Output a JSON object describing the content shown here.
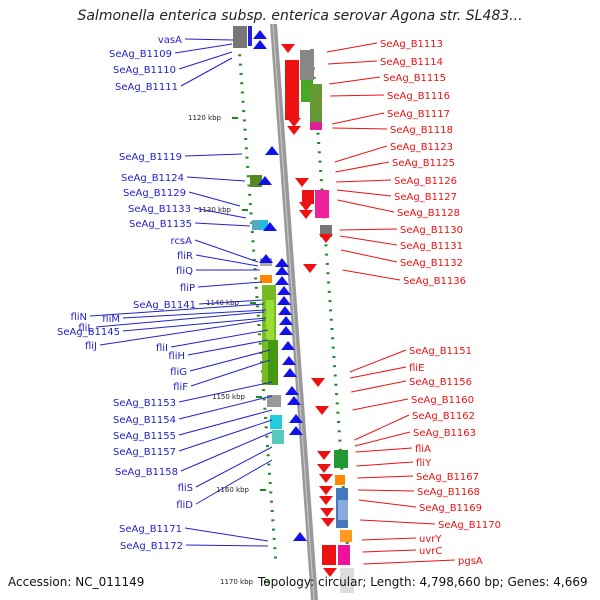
{
  "title": "Salmonella enterica subsp. enterica serovar Agona str. SL483...",
  "footer": {
    "accession": "Accession: NC_011149",
    "info": "Topology: circular; Length: 4,798,660 bp; Genes: 4,669"
  },
  "kbp_labels": [
    "1120 kbp",
    "1130 kbp",
    "1140 kbp",
    "1150 kbp",
    "1160 kbp",
    "1170 kbp"
  ],
  "left_labels": [
    "vasA",
    "SeAg_B1109",
    "SeAg_B1110",
    "SeAg_B1111",
    "SeAg_B1119",
    "SeAg_B1124",
    "SeAg_B1129",
    "SeAg_B1133",
    "SeAg_B1135",
    "rcsA",
    "fliR",
    "fliQ",
    "fliP",
    "SeAg_B1141",
    "fliN",
    "fliM",
    "fliL",
    "SeAg_B1145",
    "fliJ",
    "fliI",
    "fliH",
    "fliG",
    "fliF",
    "SeAg_B1153",
    "SeAg_B1154",
    "SeAg_B1155",
    "SeAg_B1157",
    "SeAg_B1158",
    "fliS",
    "fliD",
    "SeAg_B1171",
    "SeAg_B1172"
  ],
  "right_labels": [
    "SeAg_B1113",
    "SeAg_B1114",
    "SeAg_B1115",
    "SeAg_B1116",
    "SeAg_B1117",
    "SeAg_B1118",
    "SeAg_B1123",
    "SeAg_B1125",
    "SeAg_B1126",
    "SeAg_B1127",
    "SeAg_B1128",
    "SeAg_B1130",
    "SeAg_B1131",
    "SeAg_B1132",
    "SeAg_B1136",
    "SeAg_B1151",
    "fliE",
    "SeAg_B1156",
    "SeAg_B1160",
    "SeAg_B1162",
    "SeAg_B1163",
    "fliA",
    "fliY",
    "SeAg_B1167",
    "SeAg_B1168",
    "SeAg_B1169",
    "SeAg_B1170",
    "uvrY",
    "uvrC",
    "pgsA"
  ],
  "colors": {
    "forward_strand": "#1111ee",
    "reverse_strand": "#ee1111",
    "backbone": "#999999",
    "tick": "#228822"
  }
}
